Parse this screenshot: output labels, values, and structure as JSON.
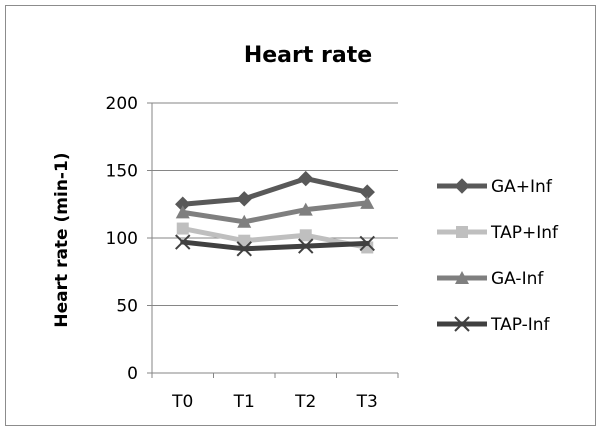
{
  "chart_data": {
    "type": "line",
    "title": "Heart rate",
    "xlabel": "",
    "ylabel": "Heart rate (min-1)",
    "categories": [
      "T0",
      "T1",
      "T2",
      "T3"
    ],
    "ylim": [
      0,
      200
    ],
    "yticks": [
      0,
      50,
      100,
      150,
      200
    ],
    "grid": true,
    "legend_position": "right",
    "series": [
      {
        "name": "GA+Inf",
        "values": [
          125,
          129,
          144,
          134
        ],
        "color": "#595959",
        "marker": "diamond"
      },
      {
        "name": "TAP+Inf",
        "values": [
          107,
          98,
          102,
          93
        ],
        "color": "#bfbfbf",
        "marker": "square"
      },
      {
        "name": "GA-Inf",
        "values": [
          119,
          112,
          121,
          126
        ],
        "color": "#7f7f7f",
        "marker": "triangle"
      },
      {
        "name": "TAP-Inf",
        "values": [
          97,
          92,
          94,
          96
        ],
        "color": "#404040",
        "marker": "x"
      }
    ]
  }
}
